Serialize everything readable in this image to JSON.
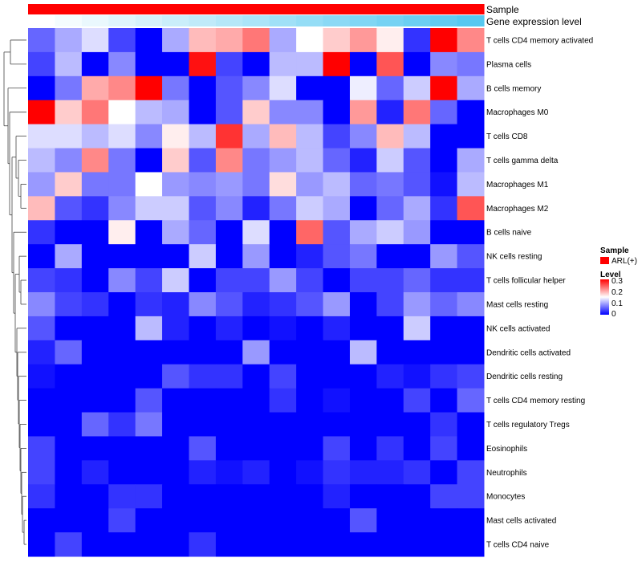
{
  "chart_data": {
    "type": "heatmap",
    "annotation_tracks": [
      {
        "name": "Sample",
        "color_low": "#ff0000",
        "color_high": "#ff0000"
      },
      {
        "name": "Gene expression level",
        "color_low": "#ffffff",
        "color_high": "#56c8f0"
      }
    ],
    "rows": [
      "T cells CD4 memory activated",
      "Plasma cells",
      "B cells memory",
      "Macrophages M0",
      "T cells CD8",
      "T cells gamma delta",
      "Macrophages M1",
      "Macrophages M2",
      "B cells naive",
      "NK cells resting",
      "T cells follicular helper",
      "Mast cells resting",
      "NK cells activated",
      "Dendritic cells activated",
      "Dendritic cells resting",
      "T cells CD4 memory resting",
      "T cells regulatory  Tregs",
      "Eosinophils",
      "Neutrophils",
      "Monocytes",
      "Mast cells activated",
      "T cells CD4 naive"
    ],
    "values": [
      [
        0.06,
        0.1,
        0.13,
        0.04,
        0.0,
        0.1,
        0.19,
        0.2,
        0.23,
        0.1,
        0.15,
        0.18,
        0.21,
        0.16,
        0.03,
        0.3,
        0.22
      ],
      [
        0.04,
        0.11,
        0.0,
        0.08,
        0.0,
        0.0,
        0.29,
        0.04,
        0.0,
        0.11,
        0.11,
        0.3,
        0.0,
        0.25,
        0.0,
        0.08,
        0.07
      ],
      [
        0.0,
        0.07,
        0.2,
        0.22,
        0.3,
        0.07,
        0.0,
        0.05,
        0.08,
        0.13,
        0.0,
        0.0,
        0.14,
        0.06,
        0.12,
        0.3,
        0.1
      ],
      [
        0.3,
        0.18,
        0.23,
        0.15,
        0.11,
        0.1,
        0.0,
        0.05,
        0.18,
        0.08,
        0.08,
        0.0,
        0.21,
        0.02,
        0.23,
        0.06,
        0.0
      ],
      [
        0.13,
        0.13,
        0.11,
        0.13,
        0.08,
        0.16,
        0.11,
        0.27,
        0.1,
        0.19,
        0.11,
        0.04,
        0.08,
        0.19,
        0.11,
        0.0,
        0.0
      ],
      [
        0.11,
        0.08,
        0.22,
        0.07,
        0.0,
        0.18,
        0.05,
        0.22,
        0.07,
        0.09,
        0.11,
        0.06,
        0.02,
        0.12,
        0.05,
        0.0,
        0.1
      ],
      [
        0.09,
        0.18,
        0.07,
        0.07,
        0.15,
        0.09,
        0.08,
        0.09,
        0.07,
        0.17,
        0.09,
        0.11,
        0.06,
        0.07,
        0.05,
        0.01,
        0.11
      ],
      [
        0.19,
        0.05,
        0.03,
        0.08,
        0.12,
        0.12,
        0.05,
        0.08,
        0.02,
        0.07,
        0.12,
        0.1,
        0.0,
        0.06,
        0.1,
        0.03,
        0.25
      ],
      [
        0.03,
        0.0,
        0.0,
        0.16,
        0.0,
        0.1,
        0.06,
        0.0,
        0.13,
        0.0,
        0.24,
        0.05,
        0.1,
        0.12,
        0.09,
        0.0,
        0.0
      ],
      [
        0.0,
        0.1,
        0.0,
        0.0,
        0.0,
        0.0,
        0.12,
        0.0,
        0.09,
        0.0,
        0.02,
        0.05,
        0.07,
        0.0,
        0.0,
        0.09,
        0.05
      ],
      [
        0.04,
        0.03,
        0.0,
        0.08,
        0.04,
        0.12,
        0.0,
        0.04,
        0.04,
        0.09,
        0.04,
        0.0,
        0.04,
        0.04,
        0.06,
        0.03,
        0.03
      ],
      [
        0.08,
        0.04,
        0.03,
        0.0,
        0.03,
        0.02,
        0.08,
        0.05,
        0.02,
        0.03,
        0.05,
        0.09,
        0.0,
        0.04,
        0.09,
        0.06,
        0.08
      ],
      [
        0.05,
        0.0,
        0.0,
        0.0,
        0.11,
        0.02,
        0.0,
        0.02,
        0.0,
        0.01,
        0.0,
        0.02,
        0.0,
        0.0,
        0.12,
        0.0,
        0.0
      ],
      [
        0.02,
        0.06,
        0.0,
        0.0,
        0.0,
        0.0,
        0.0,
        0.0,
        0.09,
        0.0,
        0.0,
        0.0,
        0.11,
        0.0,
        0.0,
        0.0,
        0.0
      ],
      [
        0.01,
        0.0,
        0.0,
        0.0,
        0.0,
        0.05,
        0.03,
        0.03,
        0.0,
        0.04,
        0.0,
        0.0,
        0.0,
        0.02,
        0.01,
        0.03,
        0.04
      ],
      [
        0.0,
        0.0,
        0.0,
        0.0,
        0.05,
        0.0,
        0.0,
        0.0,
        0.0,
        0.03,
        0.0,
        0.01,
        0.0,
        0.0,
        0.04,
        0.0,
        0.06
      ],
      [
        0.0,
        0.0,
        0.06,
        0.03,
        0.07,
        0.0,
        0.0,
        0.0,
        0.0,
        0.0,
        0.0,
        0.0,
        0.0,
        0.0,
        0.0,
        0.03,
        0.0
      ],
      [
        0.04,
        0.0,
        0.0,
        0.0,
        0.0,
        0.0,
        0.05,
        0.0,
        0.0,
        0.0,
        0.0,
        0.04,
        0.0,
        0.03,
        0.0,
        0.04,
        0.0
      ],
      [
        0.04,
        0.0,
        0.02,
        0.0,
        0.0,
        0.0,
        0.02,
        0.01,
        0.02,
        0.0,
        0.01,
        0.03,
        0.02,
        0.02,
        0.03,
        0.0,
        0.04
      ],
      [
        0.03,
        0.0,
        0.0,
        0.03,
        0.03,
        0.0,
        0.0,
        0.0,
        0.0,
        0.0,
        0.0,
        0.02,
        0.0,
        0.0,
        0.0,
        0.04,
        0.04
      ],
      [
        0.0,
        0.0,
        0.0,
        0.04,
        0.0,
        0.0,
        0.0,
        0.0,
        0.0,
        0.0,
        0.0,
        0.0,
        0.05,
        0.0,
        0.0,
        0.0,
        0.0
      ],
      [
        0.0,
        0.04,
        0.0,
        0.0,
        0.0,
        0.0,
        0.03,
        0.0,
        0.0,
        0.0,
        0.0,
        0.0,
        0.0,
        0.0,
        0.0,
        0.0,
        0.0
      ]
    ],
    "color_scale": {
      "low": "#0000ff",
      "mid": "#ffffff",
      "high": "#ff0000",
      "min": 0,
      "mid_value": 0.15,
      "max": 0.3
    },
    "legend": {
      "sample_title": "Sample",
      "sample_entry": "ARL(+)",
      "sample_color": "#ff0000",
      "level_title": "Level",
      "level_ticks": [
        "0.3",
        "0.2",
        "0.1",
        "0"
      ]
    },
    "dendrogram": "row clustering on left"
  }
}
